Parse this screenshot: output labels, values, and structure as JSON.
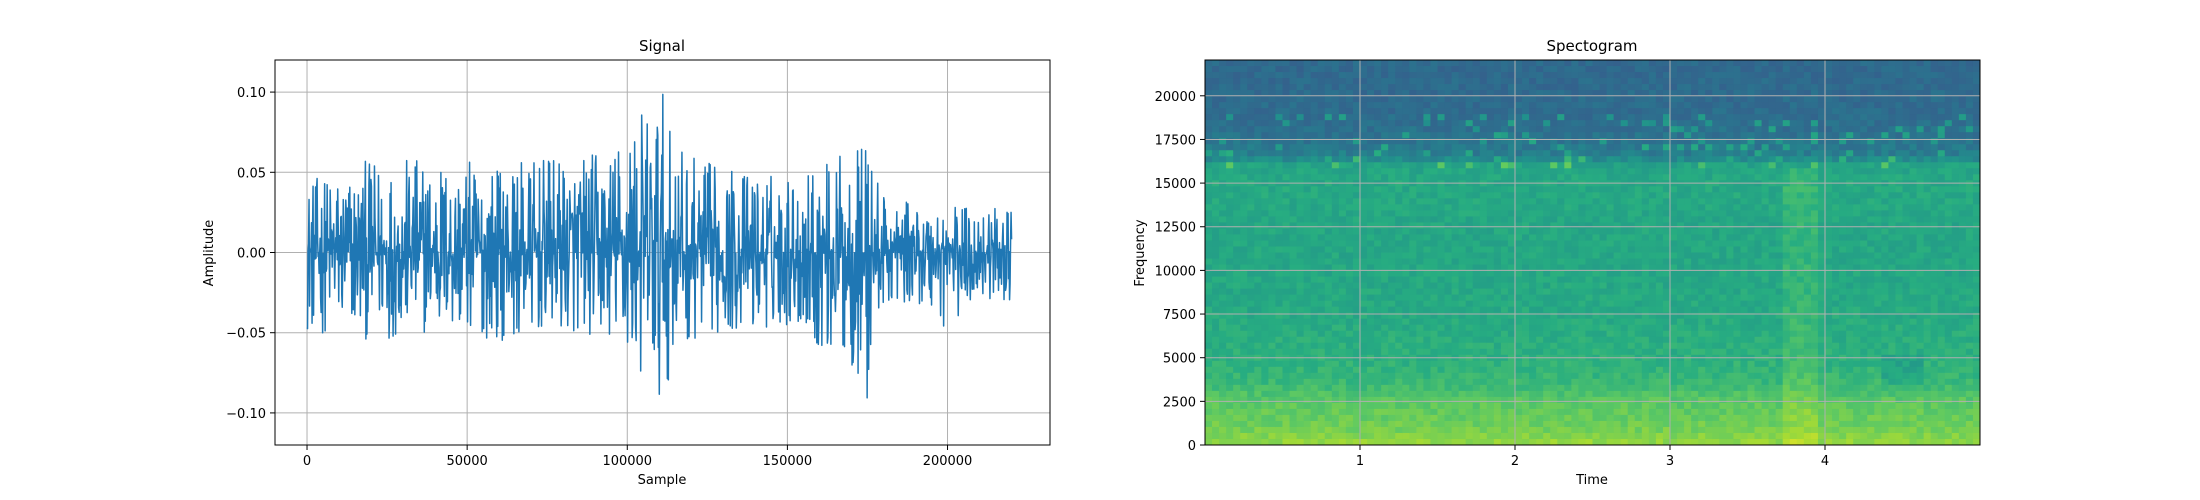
{
  "chart_data": [
    {
      "type": "line",
      "title": "Signal",
      "xlabel": "Sample",
      "ylabel": "Amplitude",
      "xlim": [
        -10000,
        232000
      ],
      "ylim": [
        -0.12,
        0.12
      ],
      "xticks": [
        0,
        50000,
        100000,
        150000,
        200000
      ],
      "xtick_labels": [
        "0",
        "50000",
        "100000",
        "150000",
        "200000"
      ],
      "yticks": [
        -0.1,
        -0.05,
        0.0,
        0.05,
        0.1
      ],
      "ytick_labels": [
        "−0.10",
        "−0.05",
        "0.00",
        "0.05",
        "0.10"
      ],
      "grid": true,
      "color": "#1f77b4",
      "series": [
        {
          "x": [
            0,
            20000,
            40000,
            60000,
            80000,
            95000,
            100000,
            105000,
            108000,
            110000,
            112000,
            115000,
            120000,
            130000,
            140000,
            150000,
            160000,
            165000,
            170000,
            173000,
            175000,
            178000,
            180000,
            190000,
            200000,
            210000,
            220000
          ],
          "upper": [
            0.045,
            0.058,
            0.06,
            0.055,
            0.06,
            0.065,
            0.085,
            0.09,
            0.1,
            0.11,
            0.09,
            0.07,
            0.06,
            0.055,
            0.05,
            0.05,
            0.055,
            0.06,
            0.065,
            0.07,
            0.075,
            0.05,
            0.035,
            0.03,
            0.03,
            0.03,
            0.025
          ],
          "lower": [
            -0.05,
            -0.055,
            -0.05,
            -0.055,
            -0.05,
            -0.055,
            -0.07,
            -0.08,
            -0.09,
            -0.108,
            -0.085,
            -0.065,
            -0.055,
            -0.05,
            -0.05,
            -0.045,
            -0.06,
            -0.07,
            -0.075,
            -0.08,
            -0.106,
            -0.045,
            -0.035,
            -0.03,
            -0.05,
            -0.03,
            -0.03
          ]
        }
      ]
    },
    {
      "type": "heatmap",
      "title": "Spectogram",
      "xlabel": "Time",
      "ylabel": "Frequency",
      "xlim": [
        0,
        5
      ],
      "ylim": [
        0,
        22050
      ],
      "xticks": [
        1,
        2,
        3,
        4
      ],
      "xtick_labels": [
        "1",
        "2",
        "3",
        "4"
      ],
      "yticks": [
        0,
        2500,
        5000,
        7500,
        10000,
        12500,
        15000,
        17500,
        20000
      ],
      "ytick_labels": [
        "0",
        "2500",
        "5000",
        "7500",
        "10000",
        "12500",
        "15000",
        "17500",
        "20000"
      ],
      "grid": true,
      "colormap": "viridis",
      "frequency_profile": {
        "frequency": [
          0,
          1000,
          2500,
          3500,
          5000,
          8000,
          12000,
          15000,
          16000,
          16500,
          17500,
          19000,
          22050
        ],
        "level": [
          0.85,
          0.78,
          0.74,
          0.67,
          0.63,
          0.6,
          0.59,
          0.6,
          0.58,
          0.45,
          0.4,
          0.37,
          0.36
        ]
      }
    }
  ]
}
